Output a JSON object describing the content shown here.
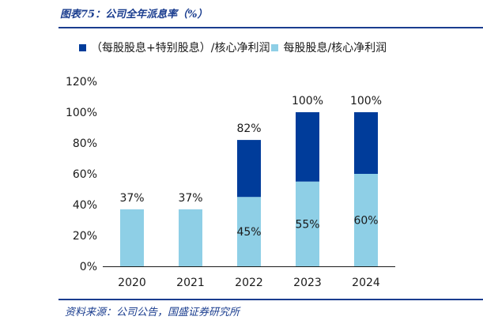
{
  "figure": {
    "title": "图表75：公司全年派息率（%）",
    "source": "资料来源：公司公告，国盛证券研究所"
  },
  "colors": {
    "accent": "#1a3d8f",
    "dark_series": "#003c9a",
    "light_series": "#8ecfe6"
  },
  "chart_data": {
    "type": "bar",
    "stacked": true,
    "categories": [
      "2020",
      "2021",
      "2022",
      "2023",
      "2024"
    ],
    "series": [
      {
        "name": "每股股息/核心净利润",
        "values": [
          37,
          37,
          45,
          55,
          60
        ],
        "color": "#8ecfe6",
        "labels": [
          "37%",
          "37%",
          "45%",
          "55%",
          "60%"
        ]
      },
      {
        "name": "（每股股息+特别股息）/核心净利润",
        "values": [
          0,
          0,
          37,
          45,
          40
        ],
        "color": "#003c9a"
      }
    ],
    "totals": [
      37,
      37,
      82,
      100,
      100
    ],
    "total_labels": [
      "",
      "",
      "82%",
      "100%",
      "100%"
    ],
    "ylim": [
      0,
      120
    ],
    "yticks": [
      "0%",
      "20%",
      "40%",
      "60%",
      "80%",
      "100%",
      "120%"
    ],
    "legend_position": "top",
    "grid": false
  }
}
